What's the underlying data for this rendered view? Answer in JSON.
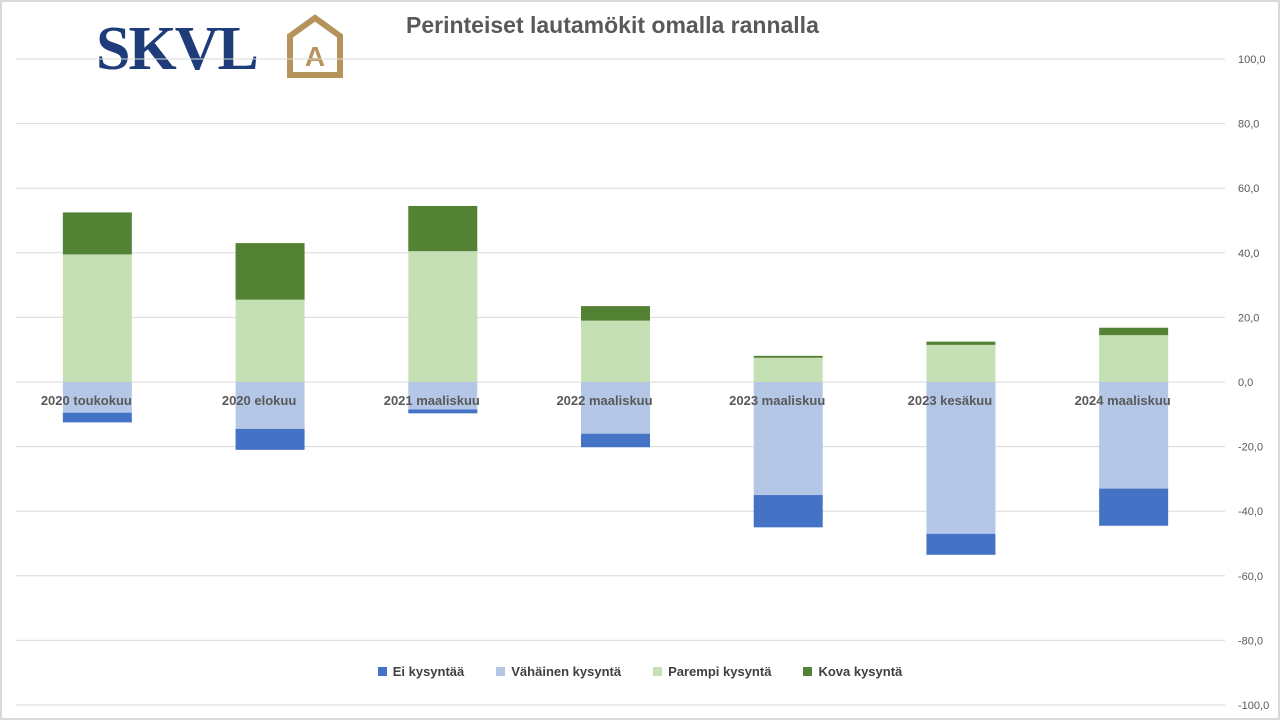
{
  "logo": {
    "text": "SKVL",
    "emblem": "A"
  },
  "chart_data": {
    "type": "bar",
    "stacked": true,
    "title": "Perinteiset lautamökit omalla rannalla",
    "categories": [
      "2020 toukokuu",
      "2020 elokuu",
      "2021 maaliskuu",
      "2022 maaliskuu",
      "2023 maaliskuu",
      "2023 kesäkuu",
      "2024 maaliskuu"
    ],
    "series": [
      {
        "name": "Ei kysyntää",
        "color": "#4472c4",
        "values": [
          -3.0,
          -6.5,
          -1.2,
          -4.2,
          -10.0,
          -6.5,
          -11.5
        ]
      },
      {
        "name": "Vähäinen kysyntä",
        "color": "#b4c7e7",
        "values": [
          -9.5,
          -14.5,
          -8.5,
          -16.0,
          -35.0,
          -47.0,
          -33.0
        ]
      },
      {
        "name": "Parempi kysyntä",
        "color": "#c5e0b4",
        "values": [
          39.5,
          25.5,
          40.5,
          19.0,
          7.5,
          11.5,
          14.5
        ]
      },
      {
        "name": "Kova kysyntä",
        "color": "#548235",
        "values": [
          13.0,
          17.5,
          14.0,
          4.5,
          0.6,
          1.0,
          2.3
        ]
      }
    ],
    "ylim": [
      -100,
      100
    ],
    "yticks": [
      "100,0",
      "80,0",
      "60,0",
      "40,0",
      "20,0",
      "0,0",
      "-20,0",
      "-40,0",
      "-60,0",
      "-80,0",
      "-100,0"
    ],
    "xlabel": "",
    "ylabel": "",
    "grid": true,
    "legend_position": "bottom"
  }
}
